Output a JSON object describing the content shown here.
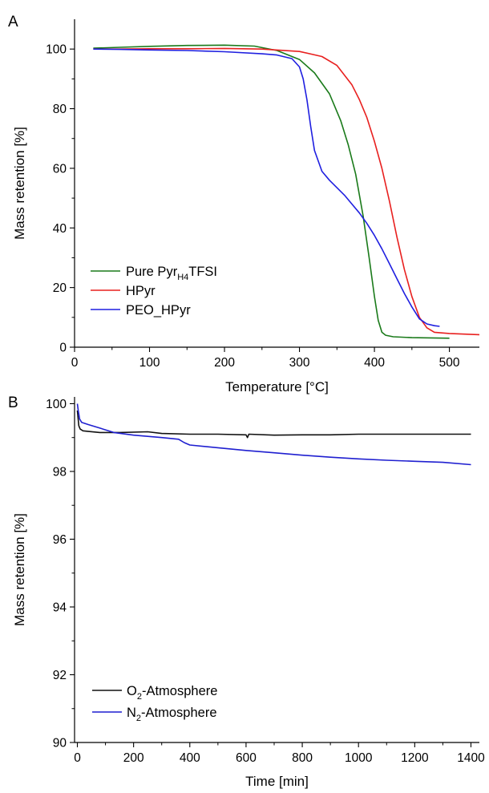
{
  "chart_data": [
    {
      "type": "line",
      "panel_label": "A",
      "xlabel": "Temperature [°C]",
      "ylabel": "Mass retention [%]",
      "xlim": [
        0,
        540
      ],
      "ylim": [
        0,
        110
      ],
      "xticks": [
        0,
        100,
        200,
        300,
        400,
        500
      ],
      "yticks": [
        0,
        20,
        40,
        60,
        80,
        100
      ],
      "grid": false,
      "legend_position": "bottom-left",
      "series": [
        {
          "name": "Pure Pyr",
          "name_subscript": "H4",
          "name_suffix": "TFSI",
          "color": "#1a7a1a",
          "x": [
            25,
            60,
            100,
            150,
            200,
            240,
            270,
            300,
            320,
            340,
            355,
            365,
            375,
            385,
            393,
            400,
            405,
            410,
            415,
            425,
            450,
            500
          ],
          "y": [
            100.3,
            100.6,
            100.9,
            101.2,
            101.3,
            101.0,
            99.5,
            96.5,
            92.0,
            85.0,
            76.0,
            68.0,
            58.0,
            44.0,
            30.0,
            17.0,
            9.0,
            5.0,
            4.0,
            3.5,
            3.2,
            3.0
          ]
        },
        {
          "name": "HPyr",
          "color": "#e8201f",
          "x": [
            25,
            60,
            100,
            150,
            200,
            250,
            300,
            330,
            350,
            370,
            380,
            390,
            400,
            410,
            420,
            430,
            440,
            450,
            460,
            470,
            480,
            500,
            540
          ],
          "y": [
            100.0,
            100.0,
            100.1,
            100.1,
            100.2,
            100.0,
            99.2,
            97.5,
            94.5,
            88.0,
            83.0,
            77.0,
            69.0,
            60.0,
            49.0,
            37.0,
            26.0,
            17.0,
            10.0,
            6.5,
            5.0,
            4.6,
            4.2
          ]
        },
        {
          "name": "PEO_HPyr",
          "color": "#1f1fe0",
          "x": [
            25,
            60,
            100,
            150,
            200,
            250,
            270,
            290,
            300,
            305,
            310,
            315,
            320,
            330,
            340,
            350,
            360,
            370,
            380,
            390,
            400,
            410,
            420,
            430,
            440,
            450,
            460,
            470,
            480,
            487
          ],
          "y": [
            100.0,
            99.9,
            99.7,
            99.5,
            99.1,
            98.4,
            98.0,
            96.8,
            94.0,
            90.0,
            83.0,
            74.0,
            66.0,
            59.0,
            56.0,
            53.5,
            51.0,
            48.0,
            45.0,
            41.5,
            37.5,
            33.0,
            28.0,
            23.0,
            18.0,
            13.5,
            9.5,
            7.8,
            7.2,
            7.0
          ]
        }
      ]
    },
    {
      "type": "line",
      "panel_label": "B",
      "xlabel": "Time [min]",
      "ylabel": "Mass retention [%]",
      "xlim": [
        -10,
        1430
      ],
      "ylim": [
        90,
        100.2
      ],
      "xticks": [
        0,
        200,
        400,
        600,
        800,
        1000,
        1200,
        1400
      ],
      "yticks": [
        90,
        92,
        94,
        96,
        98,
        100
      ],
      "grid": false,
      "legend_position": "bottom-left",
      "series": [
        {
          "name": "O",
          "name_subscript": "2",
          "name_suffix": "-Atmosphere",
          "color": "#111111",
          "x": [
            0,
            5,
            10,
            20,
            40,
            80,
            150,
            250,
            300,
            400,
            500,
            600,
            605,
            610,
            700,
            800,
            900,
            1000,
            1100,
            1200,
            1300,
            1400
          ],
          "y": [
            99.8,
            99.35,
            99.25,
            99.2,
            99.18,
            99.15,
            99.15,
            99.17,
            99.12,
            99.1,
            99.1,
            99.08,
            99.0,
            99.1,
            99.07,
            99.08,
            99.08,
            99.1,
            99.1,
            99.1,
            99.1,
            99.1
          ]
        },
        {
          "name": "N",
          "name_subscript": "2",
          "name_suffix": "-Atmosphere",
          "color": "#1f1fd0",
          "x": [
            0,
            3,
            8,
            15,
            40,
            80,
            130,
            200,
            300,
            360,
            380,
            400,
            500,
            600,
            700,
            800,
            900,
            1000,
            1100,
            1200,
            1300,
            1400
          ],
          "y": [
            100.0,
            99.8,
            99.55,
            99.45,
            99.38,
            99.28,
            99.15,
            99.07,
            99.0,
            98.95,
            98.85,
            98.78,
            98.7,
            98.62,
            98.55,
            98.48,
            98.42,
            98.37,
            98.33,
            98.3,
            98.27,
            98.2
          ]
        }
      ]
    }
  ]
}
